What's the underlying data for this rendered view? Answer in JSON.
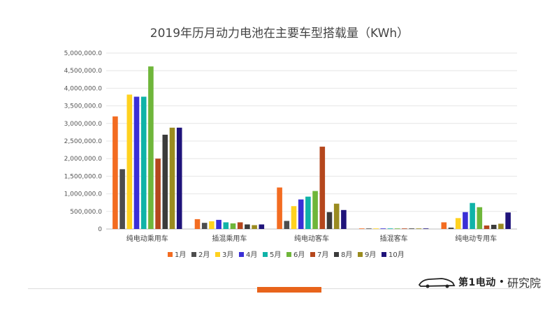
{
  "chart_data": {
    "type": "bar",
    "title": "2019年历月动力电池在主要车型搭载量（KWh）",
    "xlabel": "",
    "ylabel": "",
    "ylim": [
      0,
      5000000
    ],
    "yticks": [
      "0",
      "500,000.0",
      "1,000,000.0",
      "1,500,000.0",
      "2,000,000.0",
      "2,500,000.0",
      "3,000,000.0",
      "3,500,000.0",
      "4,000,000.0",
      "4,500,000.0",
      "5,000,000.0"
    ],
    "grid": true,
    "legend_position": "bottom",
    "categories": [
      "纯电动乘用车",
      "插混乘用车",
      "纯电动客车",
      "插混客车",
      "纯电动专用车"
    ],
    "series": [
      {
        "name": "1月",
        "color": "#f36c21",
        "values": [
          3200000,
          280000,
          1180000,
          15000,
          190000
        ]
      },
      {
        "name": "2月",
        "color": "#4d4d4d",
        "values": [
          1700000,
          175000,
          230000,
          5000,
          40000
        ]
      },
      {
        "name": "3月",
        "color": "#ffd21f",
        "values": [
          3820000,
          220000,
          650000,
          10000,
          310000
        ]
      },
      {
        "name": "4月",
        "color": "#3a2fd6",
        "values": [
          3760000,
          260000,
          840000,
          8000,
          480000
        ]
      },
      {
        "name": "5月",
        "color": "#10b3a8",
        "values": [
          3760000,
          190000,
          920000,
          12000,
          740000
        ]
      },
      {
        "name": "6月",
        "color": "#6fb63a",
        "values": [
          4620000,
          160000,
          1080000,
          15000,
          620000
        ]
      },
      {
        "name": "7月",
        "color": "#b5471d",
        "values": [
          2000000,
          190000,
          2340000,
          8000,
          100000
        ]
      },
      {
        "name": "8月",
        "color": "#3b3b3b",
        "values": [
          2680000,
          130000,
          480000,
          5000,
          120000
        ]
      },
      {
        "name": "9月",
        "color": "#9a8b1f",
        "values": [
          2880000,
          110000,
          720000,
          10000,
          150000
        ]
      },
      {
        "name": "10月",
        "color": "#1f137a",
        "values": [
          2880000,
          130000,
          540000,
          5000,
          470000
        ]
      }
    ]
  },
  "branding": {
    "name": "第1电动",
    "separator": "•",
    "sub": "研究院"
  }
}
